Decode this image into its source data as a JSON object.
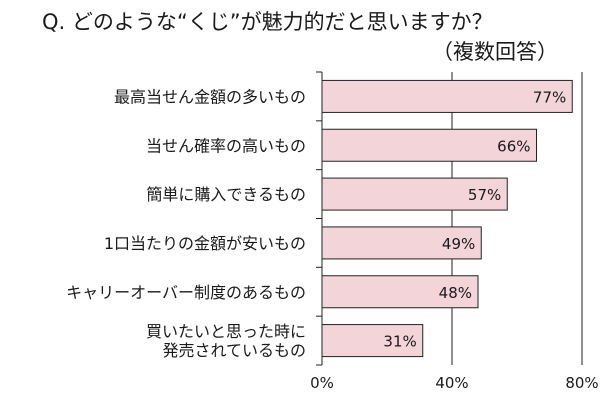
{
  "chart_data": {
    "type": "bar",
    "orientation": "horizontal",
    "title": "Q. どのような“くじ”が魅力的だと思いますか？",
    "subtitle": "（複数回答）",
    "categories": [
      [
        "最高当せん金額の多いもの"
      ],
      [
        "当せん確率の高いもの"
      ],
      [
        "簡単に購入できるもの"
      ],
      [
        "1口当たりの金額が安いもの"
      ],
      [
        "キャリーオーバー制度のあるもの"
      ],
      [
        "買いたいと思った時に",
        "発売されているもの"
      ]
    ],
    "values": [
      77,
      66,
      57,
      49,
      48,
      31
    ],
    "value_labels": [
      "77%",
      "66%",
      "57%",
      "49%",
      "48%",
      "31%"
    ],
    "xlim": [
      0,
      80
    ],
    "xticks": [
      0,
      40,
      80
    ],
    "xtick_labels": [
      "0%",
      "40%",
      "80%"
    ],
    "grid": true,
    "colors": {
      "bar_fill": "#f2d4d9",
      "bar_stroke": "#222222",
      "axis": "#222222"
    }
  }
}
